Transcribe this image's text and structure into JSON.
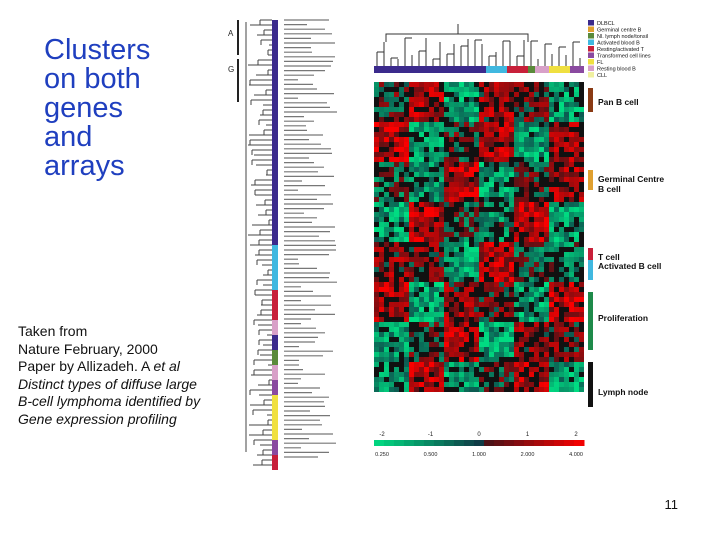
{
  "slide": {
    "title_lines": [
      "Clusters",
      "on both",
      "genes",
      "and",
      "arrays"
    ],
    "caption": {
      "line1": "Taken from",
      "line2": "Nature February, 2000",
      "line3_plain": "Paper by Allizadeh. A ",
      "line3_italic": "et al",
      "line4": "Distinct types of diffuse large",
      "line5": "B-cell lymphoma identified by",
      "line6": "Gene expression profiling"
    },
    "page_number": "11"
  },
  "figure": {
    "legend": [
      {
        "label": "DLBCL",
        "color": "#3b2a8c"
      },
      {
        "label": "Germinal centre B",
        "color": "#e0a030"
      },
      {
        "label": "Nl. lymph node/tonsil",
        "color": "#5a8a3a"
      },
      {
        "label": "Activated blood B",
        "color": "#40b8e0"
      },
      {
        "label": "Resting/activated T",
        "color": "#c8203a"
      },
      {
        "label": "Transformed cell lines",
        "color": "#8a4aa0"
      },
      {
        "label": "FL",
        "color": "#f0e040"
      },
      {
        "label": "Resting blood B",
        "color": "#d8a0c8"
      },
      {
        "label": "CLL",
        "color": "#f0f0a0"
      }
    ],
    "gene_clusters": [
      {
        "label": "Pan B cell",
        "color": "#8a3a14"
      },
      {
        "label": "Germinal Centre B cell",
        "color": "#e0a030"
      },
      {
        "label": "T cell",
        "color": "#c8203a"
      },
      {
        "label": "Activated B cell",
        "color": "#40b8e0"
      },
      {
        "label": "Proliferation",
        "color": "#1e8a4a"
      },
      {
        "label": "Lymph node",
        "color": "#111111"
      }
    ],
    "dendrogram_marks": [
      "A",
      "G"
    ],
    "scale_ticks": [
      "-2",
      "-1",
      "0",
      "1",
      "2"
    ],
    "ratio_ticks": [
      "0.250",
      "0.500",
      "1.000",
      "2.000",
      "4.000"
    ]
  }
}
